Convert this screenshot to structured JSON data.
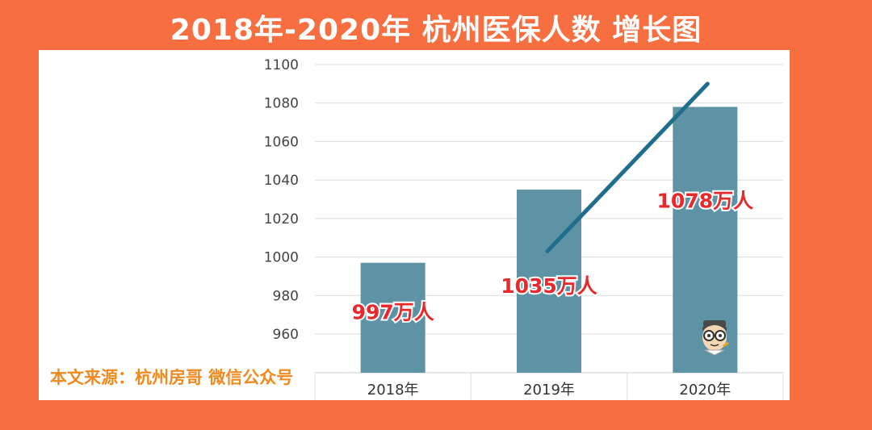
{
  "title": "2018年-2020年 杭州医保人数 增长图",
  "source_text": "本文来源：杭州房哥 微信公众号",
  "colors": {
    "background": "#F76E41",
    "bar": "#5E93A6",
    "trend": "#1F6E8C",
    "label": "#E8282B",
    "source": "#F08A1E"
  },
  "icons": [
    "cartoon-face-avatar"
  ],
  "chart_data": {
    "type": "bar",
    "categories": [
      "2018年",
      "2019年",
      "2020年"
    ],
    "series": [
      {
        "values": [
          997,
          1035,
          1078
        ]
      }
    ],
    "data_labels": [
      "997万人",
      "1035万人",
      "1078万人"
    ],
    "yticks": [
      960,
      980,
      1000,
      1020,
      1040,
      1060,
      1080,
      1100
    ],
    "ylim": [
      940,
      1100
    ],
    "grid": true,
    "trend_line": {
      "from": {
        "x": "2019年",
        "y": 1003
      },
      "to": {
        "x": "2020年",
        "y": 1090
      }
    }
  }
}
